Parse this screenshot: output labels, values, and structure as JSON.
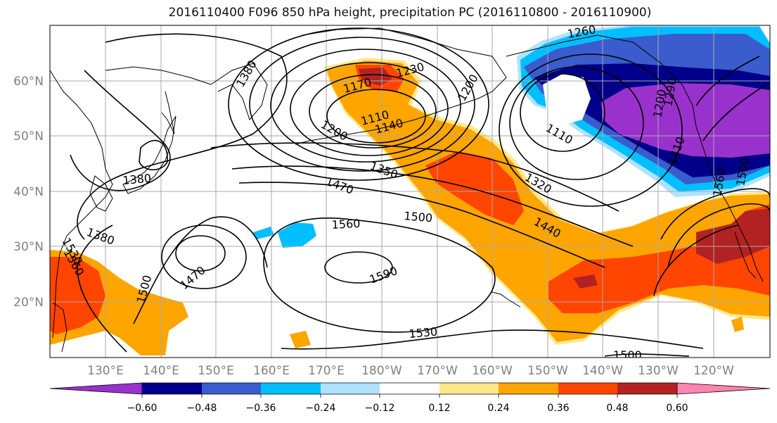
{
  "title": "2016110400 F096 850 hPa height, precipitation PC (2016110800 - 2016110900)",
  "lat_labels": [
    "60°N",
    "50°N",
    "40°N",
    "30°N",
    "20°N"
  ],
  "lon_labels": [
    "130°E",
    "140°E",
    "150°E",
    "160°E",
    "170°E",
    "180°W",
    "170°W",
    "160°W",
    "150°W",
    "140°W",
    "130°W",
    "120°W"
  ],
  "contour_labels": [
    "1260",
    "1230",
    "1170",
    "1200",
    "1110",
    "1140",
    "1200",
    "1200",
    "1110",
    "1350",
    "1320",
    "1470",
    "1500",
    "1560",
    "1440",
    "1590",
    "1530",
    "1500",
    "1380",
    "1380",
    "1380",
    "1530",
    "1560",
    "1500",
    "1470",
    "1290",
    "1410",
    "1500",
    "1560",
    "1530",
    "1290"
  ],
  "colorbar": {
    "colors": [
      "#9932cc",
      "#00008b",
      "#3a5ccc",
      "#00bfff",
      "#b0e2ff",
      "#ffffff",
      "#ffe88a",
      "#ffa500",
      "#ff4500",
      "#b22222",
      "#ff85b0"
    ],
    "ticks": [
      "−0.60",
      "−0.48",
      "−0.36",
      "−0.24",
      "−0.12",
      "0.12",
      "0.24",
      "0.36",
      "0.48",
      "0.60"
    ]
  },
  "colors": {
    "land_outline": "#000000",
    "gridline": "#a9a9a9",
    "contour": "#000000"
  }
}
